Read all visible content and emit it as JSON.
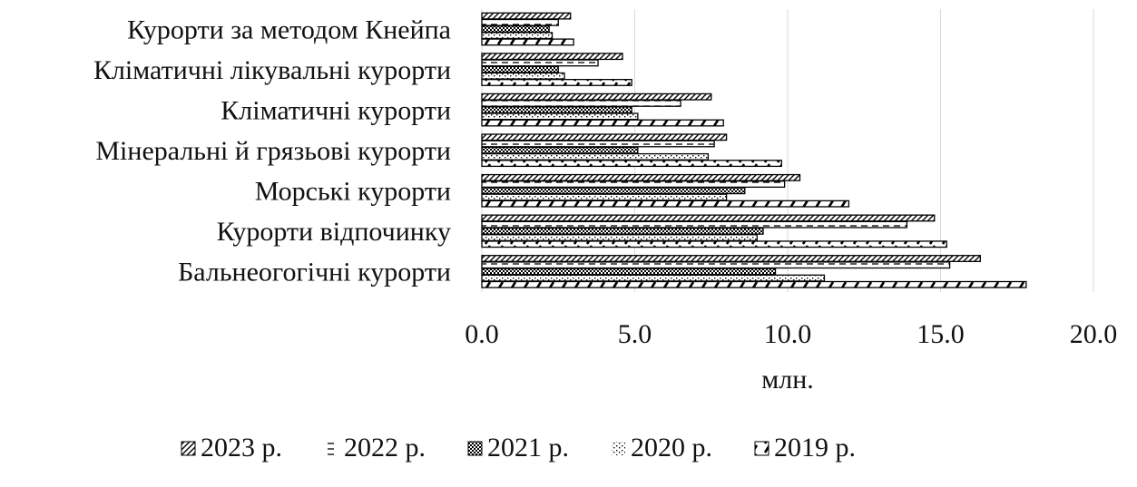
{
  "chart_data": {
    "type": "bar",
    "orientation": "horizontal",
    "categories": [
      "Бальнеогогічні курорти",
      "Курорти відпочинку",
      "Морські курорти",
      "Мінеральні й грязьові курорти",
      "Кліматичні курорти",
      "Кліматичні лікувальні курорти",
      "Курорти за методом Кнейпа"
    ],
    "series": [
      {
        "name": "2023 р.",
        "values": [
          16.3,
          14.8,
          10.4,
          8.0,
          7.5,
          4.6,
          2.9
        ],
        "pattern": "diag-fine"
      },
      {
        "name": "2022 р.",
        "values": [
          15.3,
          13.9,
          9.9,
          7.6,
          6.5,
          3.8,
          2.5
        ],
        "pattern": "dash"
      },
      {
        "name": "2021 р.",
        "values": [
          9.6,
          9.2,
          8.6,
          5.1,
          4.9,
          2.5,
          2.2
        ],
        "pattern": "dense-dots"
      },
      {
        "name": "2020 р.",
        "values": [
          11.2,
          9.0,
          8.0,
          7.4,
          5.1,
          2.7,
          2.3
        ],
        "pattern": "sparse-dots"
      },
      {
        "name": "2019 р.",
        "values": [
          17.8,
          15.2,
          12.0,
          9.8,
          7.9,
          4.9,
          3.0
        ],
        "pattern": "diag-dash"
      }
    ],
    "xlabel": "млн.",
    "xlim": [
      0,
      20
    ],
    "xticks": [
      "0.0",
      "5.0",
      "10.0",
      "15.0",
      "20.0"
    ],
    "xtick_values": [
      0,
      5,
      10,
      15,
      20
    ],
    "grid": "vertical",
    "legend": "bottom"
  }
}
